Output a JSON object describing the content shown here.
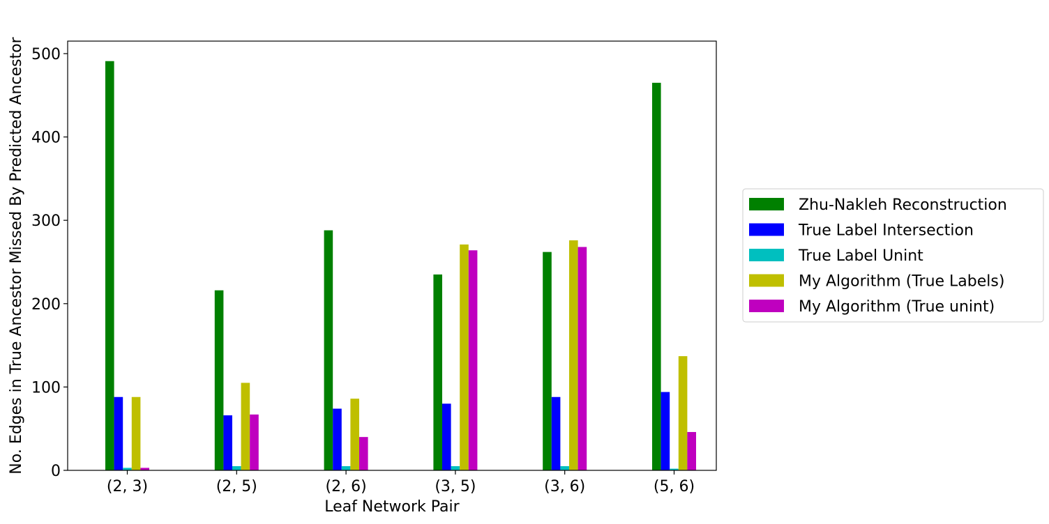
{
  "chart_data": {
    "type": "bar",
    "xlabel": "Leaf Network Pair",
    "ylabel": "No. Edges in True Ancestor Missed By Predicted Ancestor",
    "categories": [
      "(2, 3)",
      "(2, 5)",
      "(2, 6)",
      "(3, 5)",
      "(3, 6)",
      "(5, 6)"
    ],
    "ylim": [
      0,
      515
    ],
    "yticks": [
      0,
      100,
      200,
      300,
      400,
      500
    ],
    "grid": false,
    "legend_position": "right-outside",
    "series": [
      {
        "name": "Zhu-Nakleh Reconstruction",
        "color": "#008000",
        "values": [
          491,
          216,
          288,
          235,
          262,
          465
        ]
      },
      {
        "name": "True Label Intersection",
        "color": "#0000ff",
        "values": [
          88,
          66,
          74,
          80,
          88,
          94
        ]
      },
      {
        "name": "True Label Unint",
        "color": "#00bfbf",
        "values": [
          3,
          5,
          5,
          5,
          5,
          2
        ]
      },
      {
        "name": "My Algorithm (True Labels)",
        "color": "#bfbf00",
        "values": [
          88,
          105,
          86,
          271,
          276,
          137
        ]
      },
      {
        "name": "My Algorithm (True unint)",
        "color": "#bf00bf",
        "values": [
          3,
          67,
          40,
          264,
          268,
          46
        ]
      }
    ]
  }
}
